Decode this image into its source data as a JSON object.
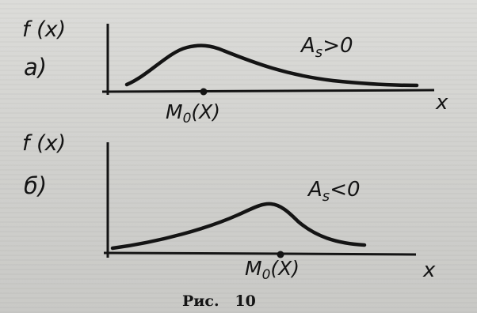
{
  "panels": [
    {
      "id": "a",
      "letter": "а)",
      "ylabel": "f (x)",
      "xlabel": "x",
      "mode_label": "M0(X)",
      "mode_base": "M",
      "mode_sub": "0",
      "mode_arg": "(X)",
      "skew_label": "As>0",
      "skew_base": "A",
      "skew_sub": "s",
      "skew_rel": ">0",
      "skewness_sign": "positive"
    },
    {
      "id": "b",
      "letter": "б)",
      "ylabel": "f (x)",
      "xlabel": "x",
      "mode_label": "M0(X)",
      "mode_base": "M",
      "mode_sub": "0",
      "mode_arg": "(X)",
      "skew_label": "As<0",
      "skew_base": "A",
      "skew_sub": "s",
      "skew_rel": "<0",
      "skewness_sign": "negative"
    }
  ],
  "caption": "Рис.   10",
  "colors": {
    "ink": "#141414",
    "paper": "#d2d2cf"
  }
}
